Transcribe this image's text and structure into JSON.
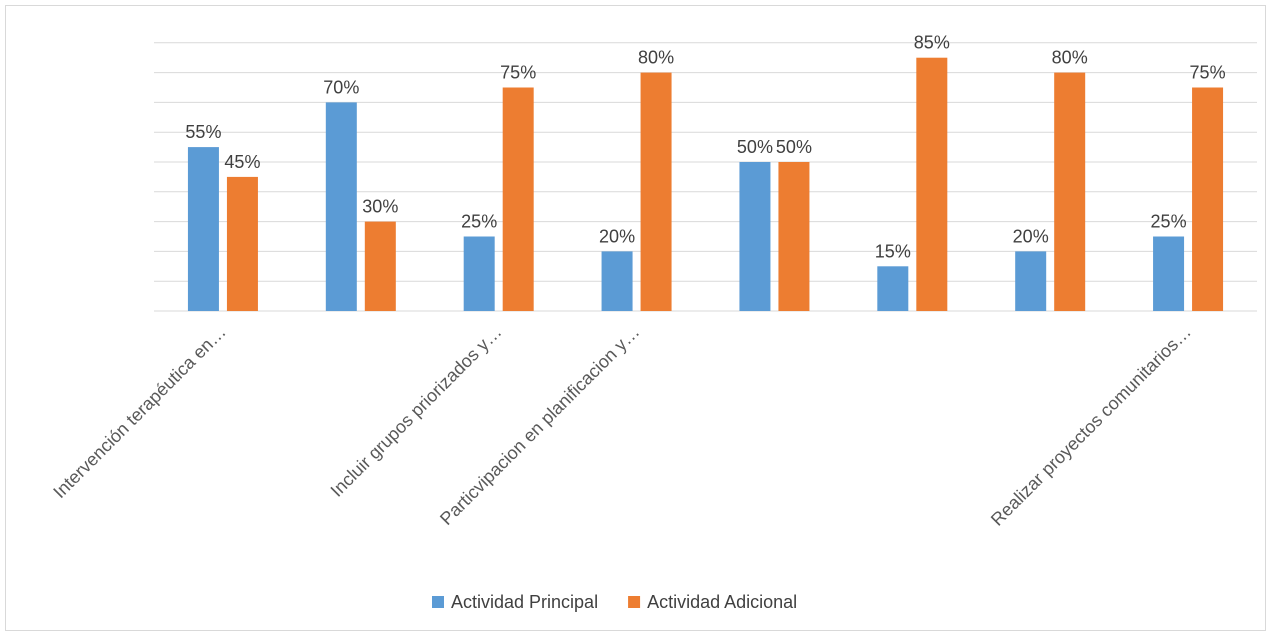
{
  "chart_data": {
    "type": "bar",
    "categories": [
      "Intervención terapéutica en…",
      "",
      "Incluir grupos priorizados y…",
      "Particvipacion en planificacion y…",
      "",
      "",
      "",
      "Realizar proyectos comunitarios…"
    ],
    "series": [
      {
        "name": "Actividad Principal",
        "color": "#5b9bd5",
        "values": [
          55,
          70,
          25,
          20,
          50,
          15,
          20,
          25
        ]
      },
      {
        "name": "Actividad Adicional",
        "color": "#ed7d31",
        "values": [
          45,
          30,
          75,
          80,
          50,
          85,
          80,
          75
        ]
      }
    ],
    "value_suffix": "%",
    "ylim": [
      0,
      90
    ],
    "grid": true,
    "legend": "bottom"
  }
}
